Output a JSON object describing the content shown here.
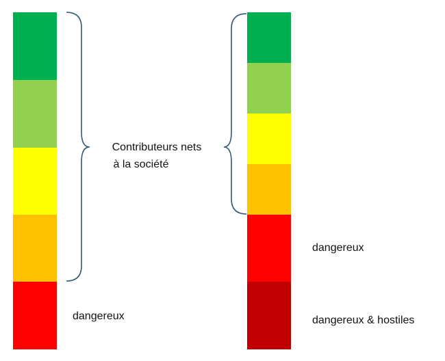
{
  "label": {
    "lines": [
      "Contributeurs nets",
      "à la société"
    ]
  },
  "left": {
    "label": "dangereux"
  },
  "right": {
    "labels": [
      "dangereux",
      "dangereux & hostiles"
    ]
  }
}
